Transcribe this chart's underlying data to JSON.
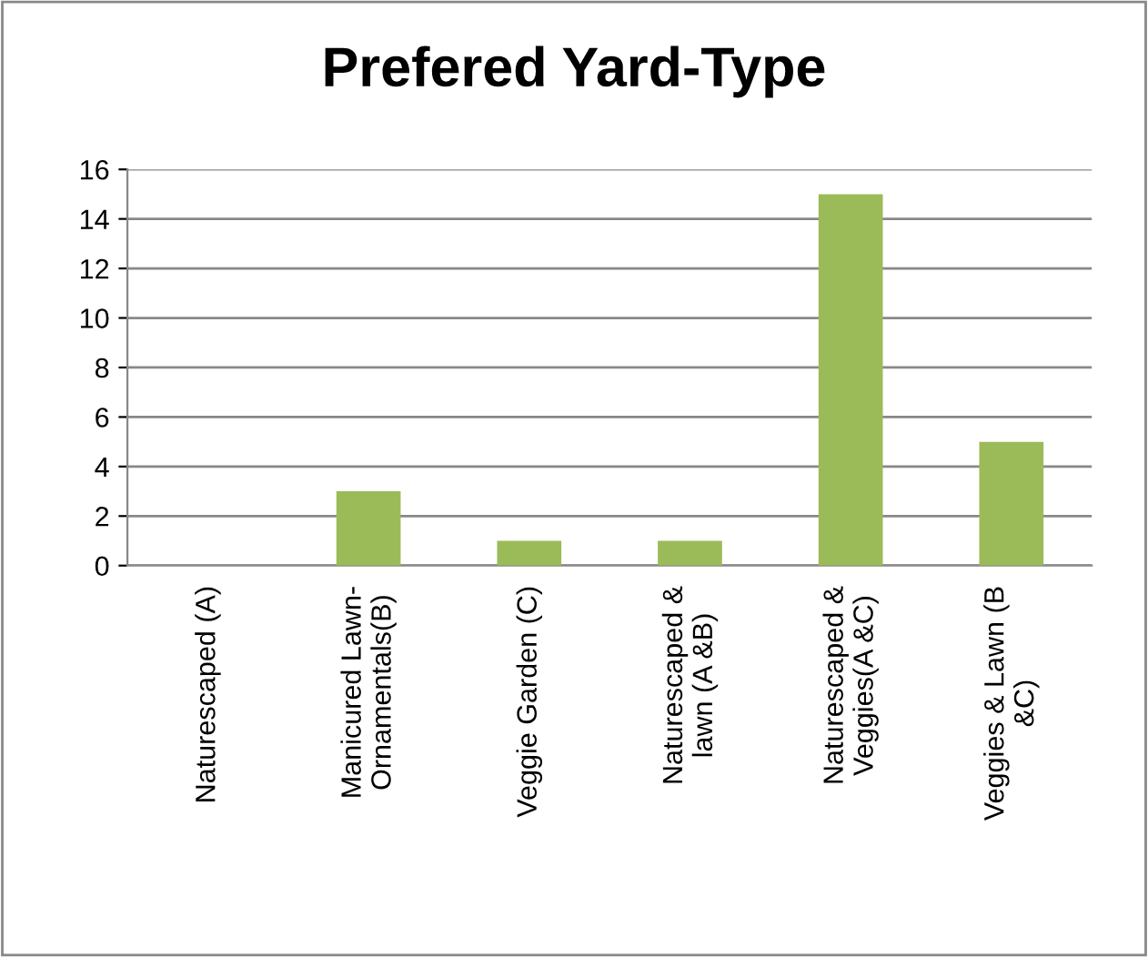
{
  "chart_data": {
    "type": "bar",
    "title": "Prefered Yard-Type",
    "categories": [
      "Naturescaped (A)",
      "Manicured Lawn-\nOrnamentals(B)",
      "Veggie Garden (C)",
      "Naturescaped &\nlawn (A &B)",
      "Naturescaped &\nVeggies(A &C)",
      "Veggies & Lawn (B\n&C)"
    ],
    "values": [
      0,
      3,
      1,
      1,
      15,
      5
    ],
    "color": "#9bbb59",
    "ylim": [
      0,
      16
    ],
    "yticks": [
      0,
      2,
      4,
      6,
      8,
      10,
      12,
      14,
      16
    ],
    "grid": "y"
  }
}
